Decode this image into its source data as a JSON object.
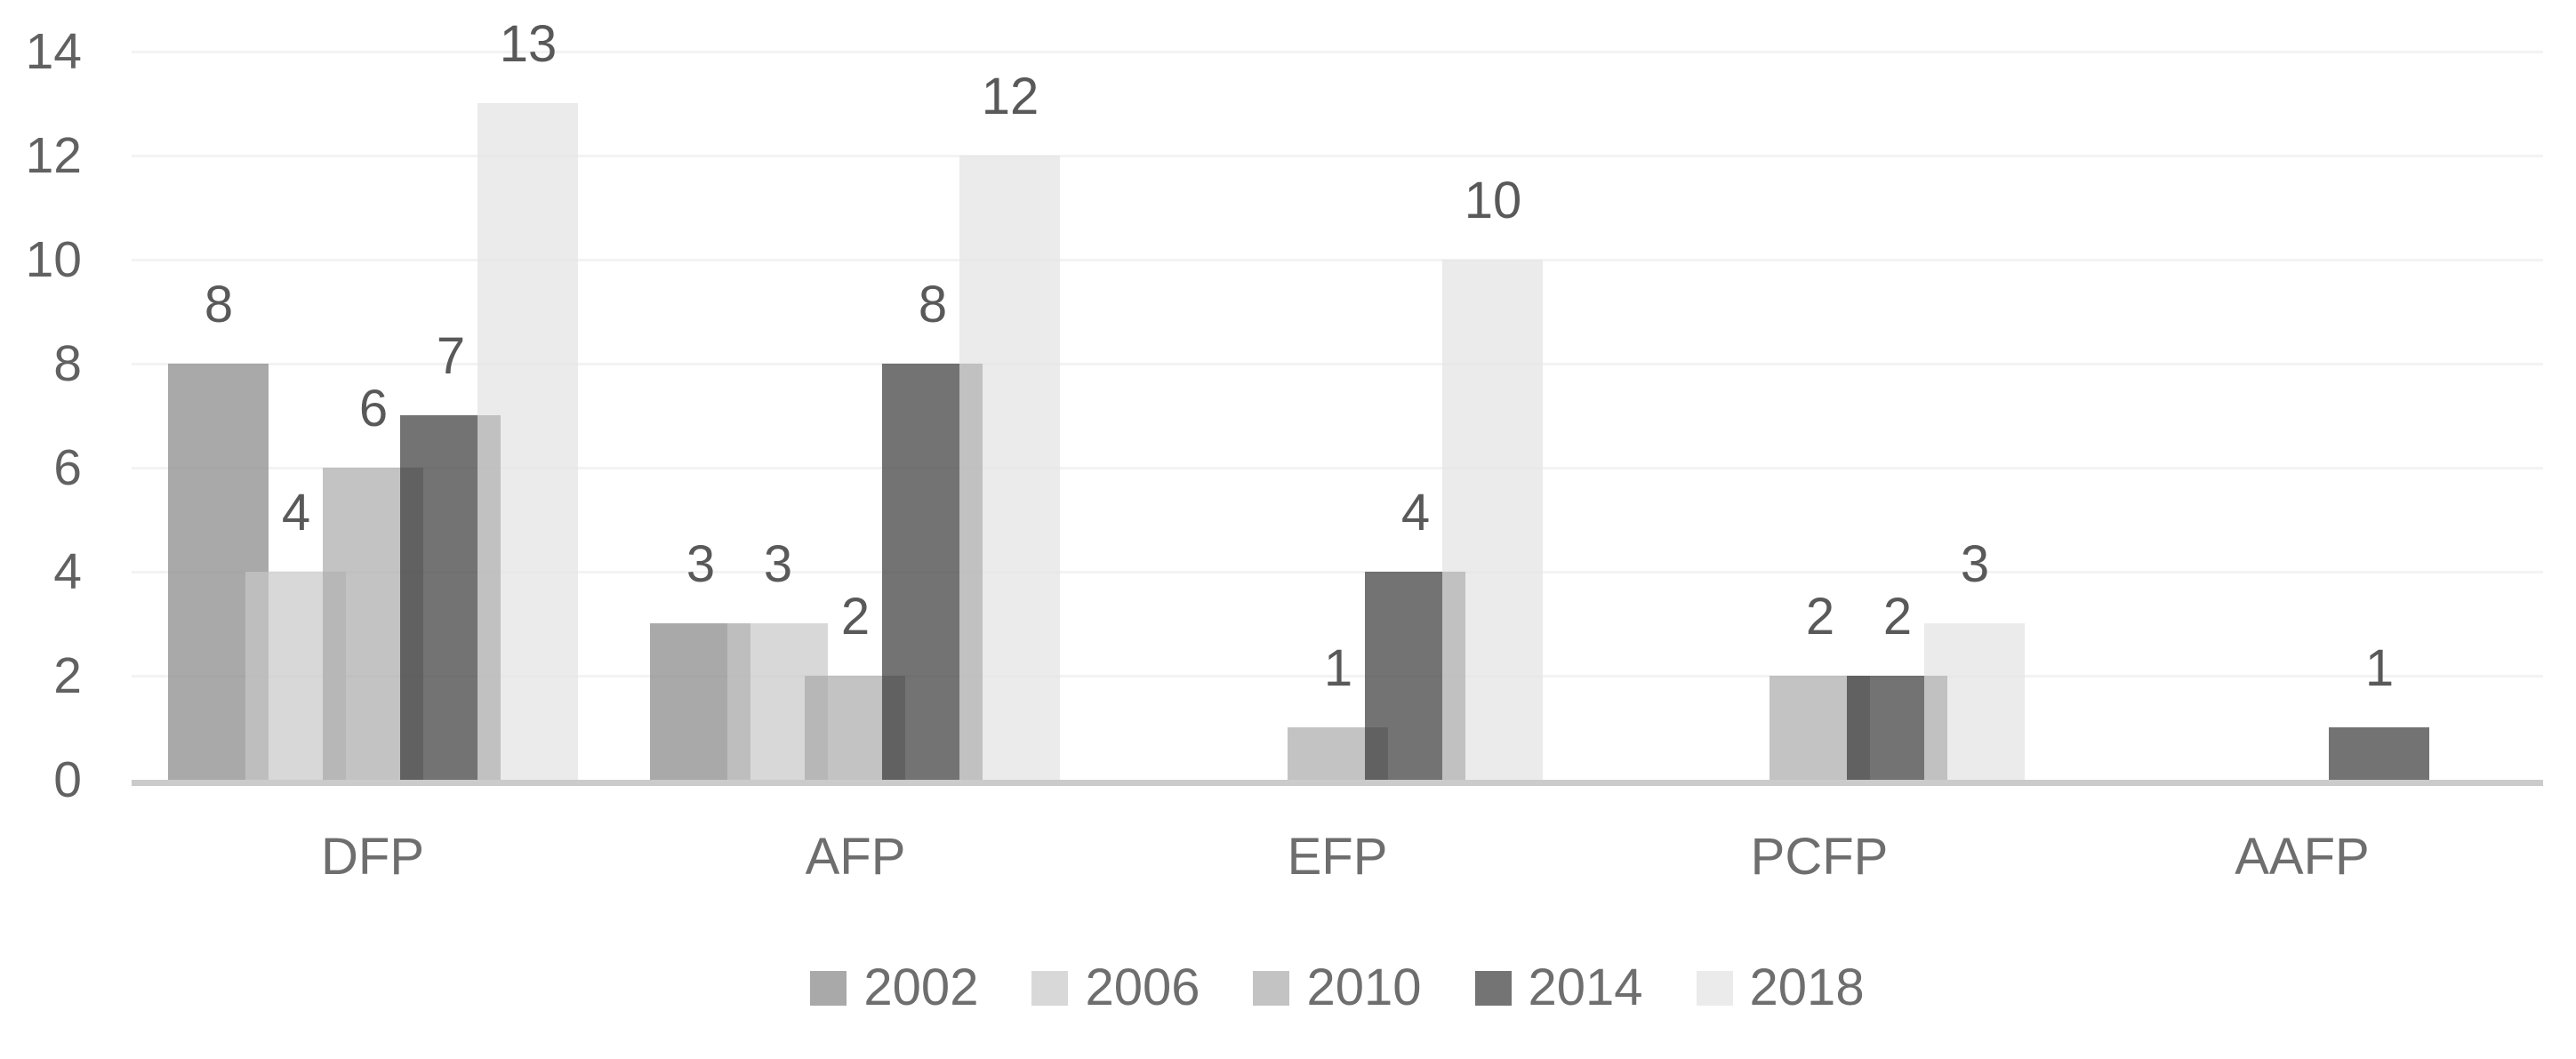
{
  "chart_data": {
    "type": "bar",
    "title": "",
    "xlabel": "",
    "ylabel": "",
    "categories": [
      "DFP",
      "AFP",
      "EFP",
      "PCFP",
      "AAFP"
    ],
    "series": [
      {
        "name": "2002",
        "color": "#a9a9a9",
        "values": [
          8,
          3,
          0,
          0,
          0
        ]
      },
      {
        "name": "2006",
        "color": "#d8d8d8",
        "values": [
          4,
          3,
          0,
          0,
          0
        ]
      },
      {
        "name": "2010",
        "color": "#c3c3c3",
        "values": [
          6,
          2,
          1,
          2,
          0
        ]
      },
      {
        "name": "2014",
        "color": "#747474",
        "values": [
          7,
          8,
          4,
          2,
          1
        ]
      },
      {
        "name": "2018",
        "color": "#ebebeb",
        "values": [
          13,
          12,
          10,
          3,
          0
        ]
      }
    ],
    "y_axis": {
      "min": 0,
      "max": 14,
      "ticks": [
        0,
        2,
        4,
        6,
        8,
        10,
        12,
        14
      ]
    },
    "grid": true,
    "data_labels_shown": true,
    "legend_position": "bottom",
    "colors": {
      "tick_label": "#616161",
      "data_label": "#595959",
      "category_label": "#6e6e6e",
      "legend_label": "#6e6e6e",
      "axis_line": "#cbcbcb",
      "gridline": "#f3f3f3",
      "background": "#ffffff"
    }
  }
}
